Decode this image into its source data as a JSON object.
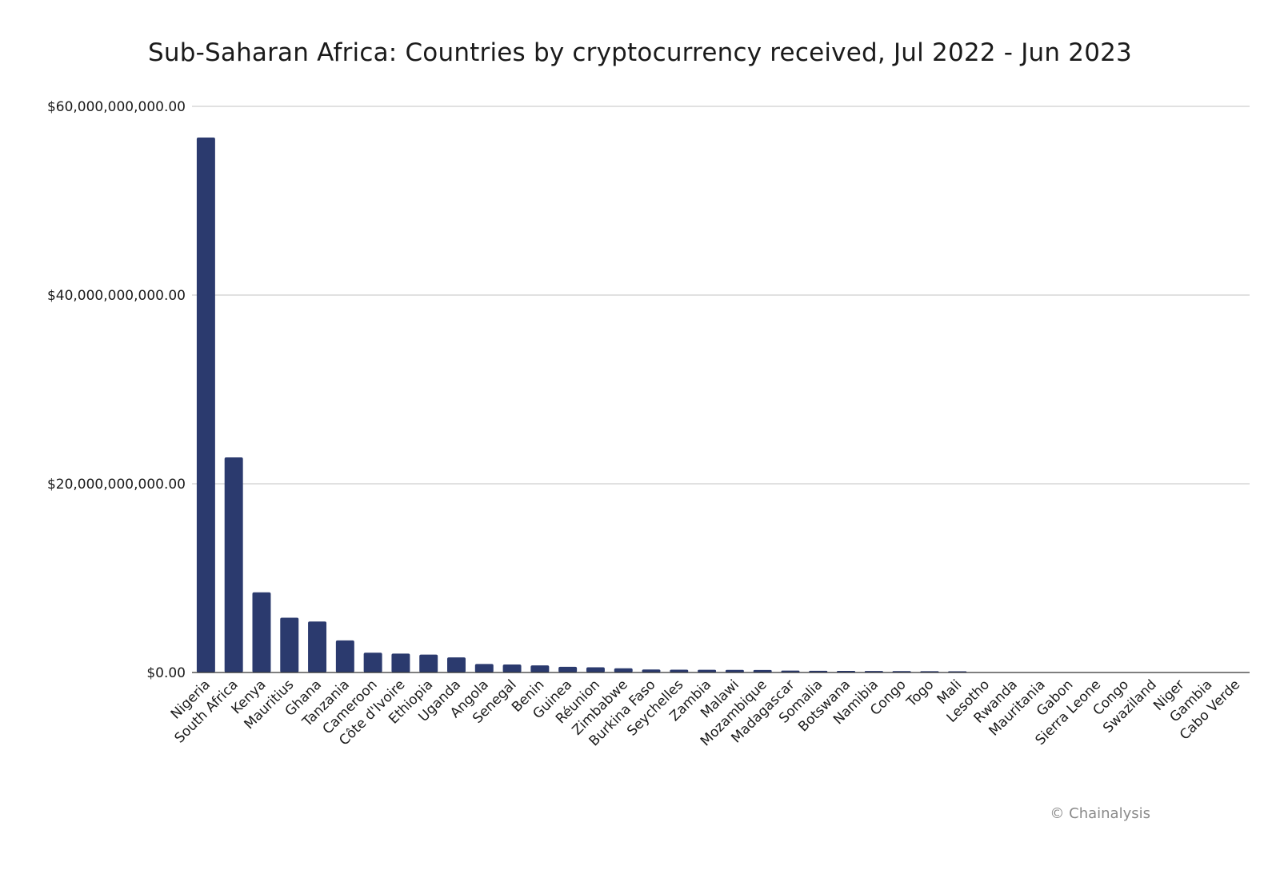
{
  "chart_data": {
    "type": "bar",
    "title": "Sub-Saharan Africa: Countries by cryptocurrency received, Jul 2022 - Jun 2023",
    "xlabel": "",
    "ylabel": "",
    "ylim": [
      0,
      60000000000
    ],
    "yticks": [
      {
        "value": 0,
        "label": "$0.00"
      },
      {
        "value": 20000000000,
        "label": "$20,000,000,000.00"
      },
      {
        "value": 40000000000,
        "label": "$40,000,000,000.00"
      },
      {
        "value": 60000000000,
        "label": "$60,000,000,000.00"
      }
    ],
    "grid": true,
    "bar_color": "#2b3a6e",
    "categories": [
      "Nigeria",
      "South Africa",
      "Kenya",
      "Mauritius",
      "Ghana",
      "Tanzania",
      "Cameroon",
      "Côte d'Ivoire",
      "Ethiopia",
      "Uganda",
      "Angola",
      "Senegal",
      "Benin",
      "Guinea",
      "Réunion",
      "Zimbabwe",
      "Burkina Faso",
      "Seychelles",
      "Zambia",
      "Malawi",
      "Mozambique",
      "Madagascar",
      "Somalia",
      "Botswana",
      "Namibia",
      "Congo",
      "Togo",
      "Mali",
      "Lesotho",
      "Rwanda",
      "Mauritania",
      "Gabon",
      "Sierra Leone",
      "Congo",
      "Swaziland",
      "Niger",
      "Gambia",
      "Cabo Verde"
    ],
    "values": [
      56700000000,
      22800000000,
      8500000000,
      5800000000,
      5400000000,
      3400000000,
      2100000000,
      2000000000,
      1900000000,
      1600000000,
      900000000,
      850000000,
      750000000,
      600000000,
      550000000,
      450000000,
      320000000,
      300000000,
      290000000,
      280000000,
      270000000,
      200000000,
      180000000,
      170000000,
      160000000,
      150000000,
      140000000,
      130000000,
      20000000,
      18000000,
      16000000,
      14000000,
      12000000,
      10000000,
      9000000,
      8000000,
      7000000,
      6000000
    ]
  },
  "credit": "© Chainalysis"
}
